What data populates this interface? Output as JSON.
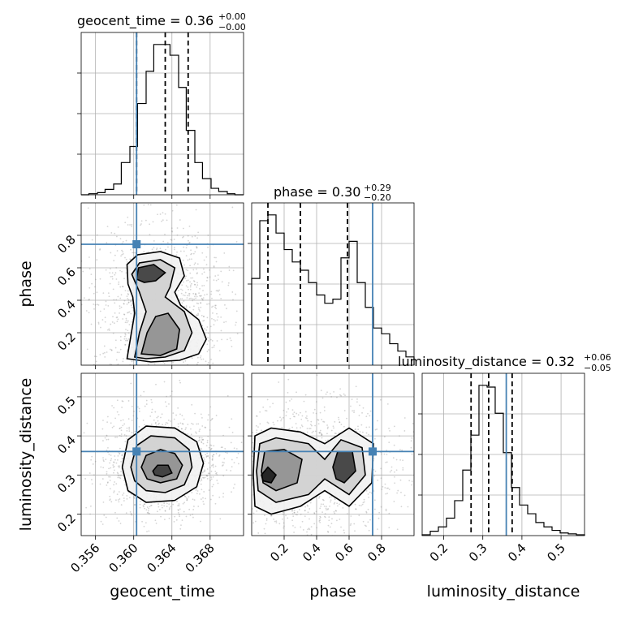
{
  "chart_data": {
    "type": "corner",
    "parameters": [
      "geocent_time",
      "phase",
      "luminosity_distance"
    ],
    "titles": [
      {
        "name": "geocent_time",
        "median": "0.36",
        "plus": "+0.00",
        "minus": "−0.00"
      },
      {
        "name": "phase",
        "median": "0.30",
        "plus": "+0.29",
        "minus": "−0.20"
      },
      {
        "name": "luminosity_distance",
        "median": "0.32",
        "plus": "+0.06",
        "minus": "−0.05"
      }
    ],
    "axis_labels": {
      "x": [
        "geocent_time",
        "phase",
        "luminosity_distance"
      ],
      "y": [
        "phase",
        "luminosity_distance"
      ]
    },
    "ranges": {
      "geocent_time": [
        0.3545,
        0.3715
      ],
      "phase": [
        0.0,
        1.0
      ],
      "luminosity_distance": [
        0.145,
        0.56
      ]
    },
    "ticks": {
      "geocent_time": [
        "0.356",
        "0.360",
        "0.364",
        "0.368"
      ],
      "phase_x": [
        "0.2",
        "0.4",
        "0.6",
        "0.8"
      ],
      "phase_y": [
        "0.2",
        "0.4",
        "0.6",
        "0.8"
      ],
      "luminosity_distance_x": [
        "0.2",
        "0.3",
        "0.4",
        "0.5"
      ],
      "luminosity_distance_y": [
        "0.2",
        "0.3",
        "0.4",
        "0.5"
      ]
    },
    "truth": {
      "geocent_time": 0.3603,
      "phase": 0.745,
      "luminosity_distance": 0.36
    },
    "quantiles": {
      "geocent_time": [
        0.3603,
        0.3633,
        0.3657
      ],
      "phase": [
        0.1,
        0.3,
        0.59
      ],
      "luminosity_distance": [
        0.27,
        0.315,
        0.375
      ]
    },
    "histograms": {
      "geocent_time": {
        "edges": [
          0.3545,
          0.3553,
          0.3562,
          0.357,
          0.3579,
          0.3587,
          0.3596,
          0.3604,
          0.3613,
          0.3621,
          0.363,
          0.3638,
          0.3647,
          0.3655,
          0.3664,
          0.3672,
          0.3681,
          0.3689,
          0.3698,
          0.3706,
          0.3715
        ],
        "counts": [
          0,
          1,
          2,
          5,
          10,
          30,
          45,
          85,
          115,
          140,
          140,
          130,
          100,
          60,
          30,
          15,
          6,
          3,
          1,
          0
        ]
      },
      "phase": {
        "edges": [
          0.0,
          0.05,
          0.1,
          0.15,
          0.2,
          0.25,
          0.3,
          0.35,
          0.4,
          0.45,
          0.5,
          0.55,
          0.6,
          0.65,
          0.7,
          0.75,
          0.8,
          0.85,
          0.9,
          0.95,
          1.0
        ],
        "counts": [
          105,
          175,
          182,
          160,
          140,
          125,
          115,
          100,
          85,
          75,
          80,
          130,
          150,
          100,
          70,
          45,
          38,
          26,
          17,
          10
        ]
      },
      "luminosity_distance": {
        "edges": [
          0.145,
          0.1657,
          0.1865,
          0.2072,
          0.228,
          0.2487,
          0.2695,
          0.2902,
          0.311,
          0.3317,
          0.3525,
          0.3732,
          0.394,
          0.4147,
          0.4355,
          0.4562,
          0.477,
          0.4977,
          0.5185,
          0.5392,
          0.56
        ],
        "counts": [
          1,
          5,
          10,
          20,
          40,
          75,
          115,
          172,
          170,
          140,
          95,
          55,
          35,
          25,
          15,
          10,
          6,
          3,
          2,
          1
        ]
      }
    },
    "contours_2d": [
      {
        "x": "geocent_time",
        "y": "phase",
        "levels": [
          [
            [
              0.3593,
              0.04
            ],
            [
              0.3597,
              0.18
            ],
            [
              0.3601,
              0.32
            ],
            [
              0.3599,
              0.42
            ],
            [
              0.3594,
              0.5
            ],
            [
              0.3593,
              0.62
            ],
            [
              0.3604,
              0.68
            ],
            [
              0.3628,
              0.7
            ],
            [
              0.3648,
              0.66
            ],
            [
              0.3653,
              0.55
            ],
            [
              0.3643,
              0.45
            ],
            [
              0.3649,
              0.37
            ],
            [
              0.3668,
              0.28
            ],
            [
              0.3676,
              0.16
            ],
            [
              0.3668,
              0.07
            ],
            [
              0.3648,
              0.03
            ],
            [
              0.3618,
              0.02
            ]
          ],
          [
            [
              0.3601,
              0.05
            ],
            [
              0.3606,
              0.2
            ],
            [
              0.3613,
              0.33
            ],
            [
              0.3606,
              0.45
            ],
            [
              0.3598,
              0.56
            ],
            [
              0.3606,
              0.63
            ],
            [
              0.3628,
              0.65
            ],
            [
              0.3643,
              0.6
            ],
            [
              0.3638,
              0.48
            ],
            [
              0.3633,
              0.42
            ],
            [
              0.3653,
              0.33
            ],
            [
              0.3661,
              0.2
            ],
            [
              0.3653,
              0.09
            ],
            [
              0.3633,
              0.05
            ],
            [
              0.3613,
              0.04
            ]
          ],
          [
            [
              0.3608,
              0.07
            ],
            [
              0.3614,
              0.2
            ],
            [
              0.3623,
              0.3
            ],
            [
              0.3636,
              0.32
            ],
            [
              0.3648,
              0.22
            ],
            [
              0.3645,
              0.1
            ],
            [
              0.3628,
              0.06
            ]
          ],
          [
            [
              0.3603,
              0.53
            ],
            [
              0.3605,
              0.6
            ],
            [
              0.3621,
              0.62
            ],
            [
              0.3633,
              0.57
            ],
            [
              0.3623,
              0.52
            ],
            [
              0.3611,
              0.51
            ]
          ]
        ]
      },
      {
        "x": "geocent_time",
        "y": "luminosity_distance",
        "levels": [
          [
            [
              0.3588,
              0.32
            ],
            [
              0.3594,
              0.39
            ],
            [
              0.3613,
              0.425
            ],
            [
              0.3643,
              0.42
            ],
            [
              0.3666,
              0.385
            ],
            [
              0.3673,
              0.33
            ],
            [
              0.3666,
              0.27
            ],
            [
              0.3643,
              0.235
            ],
            [
              0.3613,
              0.23
            ],
            [
              0.3594,
              0.26
            ]
          ],
          [
            [
              0.3597,
              0.32
            ],
            [
              0.3603,
              0.375
            ],
            [
              0.3618,
              0.4
            ],
            [
              0.3643,
              0.395
            ],
            [
              0.3658,
              0.365
            ],
            [
              0.3661,
              0.32
            ],
            [
              0.3653,
              0.275
            ],
            [
              0.3633,
              0.255
            ],
            [
              0.3613,
              0.26
            ],
            [
              0.3601,
              0.285
            ]
          ],
          [
            [
              0.3608,
              0.32
            ],
            [
              0.3613,
              0.35
            ],
            [
              0.3628,
              0.365
            ],
            [
              0.3643,
              0.355
            ],
            [
              0.3651,
              0.325
            ],
            [
              0.3645,
              0.29
            ],
            [
              0.3628,
              0.28
            ],
            [
              0.3614,
              0.29
            ]
          ],
          [
            [
              0.362,
              0.31
            ],
            [
              0.3625,
              0.325
            ],
            [
              0.3636,
              0.325
            ],
            [
              0.364,
              0.305
            ],
            [
              0.363,
              0.295
            ],
            [
              0.3622,
              0.3
            ]
          ]
        ]
      },
      {
        "x": "phase",
        "y": "luminosity_distance",
        "levels": [
          [
            [
              0.01,
              0.3
            ],
            [
              0.02,
              0.4
            ],
            [
              0.12,
              0.42
            ],
            [
              0.3,
              0.41
            ],
            [
              0.45,
              0.38
            ],
            [
              0.6,
              0.42
            ],
            [
              0.75,
              0.38
            ],
            [
              0.74,
              0.28
            ],
            [
              0.6,
              0.22
            ],
            [
              0.45,
              0.26
            ],
            [
              0.3,
              0.22
            ],
            [
              0.12,
              0.2
            ],
            [
              0.02,
              0.22
            ]
          ],
          [
            [
              0.03,
              0.31
            ],
            [
              0.05,
              0.38
            ],
            [
              0.15,
              0.395
            ],
            [
              0.35,
              0.38
            ],
            [
              0.45,
              0.34
            ],
            [
              0.55,
              0.39
            ],
            [
              0.68,
              0.37
            ],
            [
              0.7,
              0.3
            ],
            [
              0.6,
              0.25
            ],
            [
              0.45,
              0.29
            ],
            [
              0.35,
              0.25
            ],
            [
              0.15,
              0.23
            ],
            [
              0.04,
              0.26
            ]
          ],
          [
            [
              0.06,
              0.31
            ],
            [
              0.08,
              0.36
            ],
            [
              0.2,
              0.365
            ],
            [
              0.31,
              0.34
            ],
            [
              0.28,
              0.28
            ],
            [
              0.15,
              0.26
            ],
            [
              0.07,
              0.28
            ]
          ],
          [
            [
              0.5,
              0.32
            ],
            [
              0.53,
              0.36
            ],
            [
              0.62,
              0.36
            ],
            [
              0.64,
              0.31
            ],
            [
              0.57,
              0.28
            ],
            [
              0.52,
              0.29
            ]
          ],
          [
            [
              0.06,
              0.3
            ],
            [
              0.1,
              0.32
            ],
            [
              0.15,
              0.3
            ],
            [
              0.12,
              0.28
            ],
            [
              0.07,
              0.285
            ]
          ]
        ]
      }
    ]
  }
}
